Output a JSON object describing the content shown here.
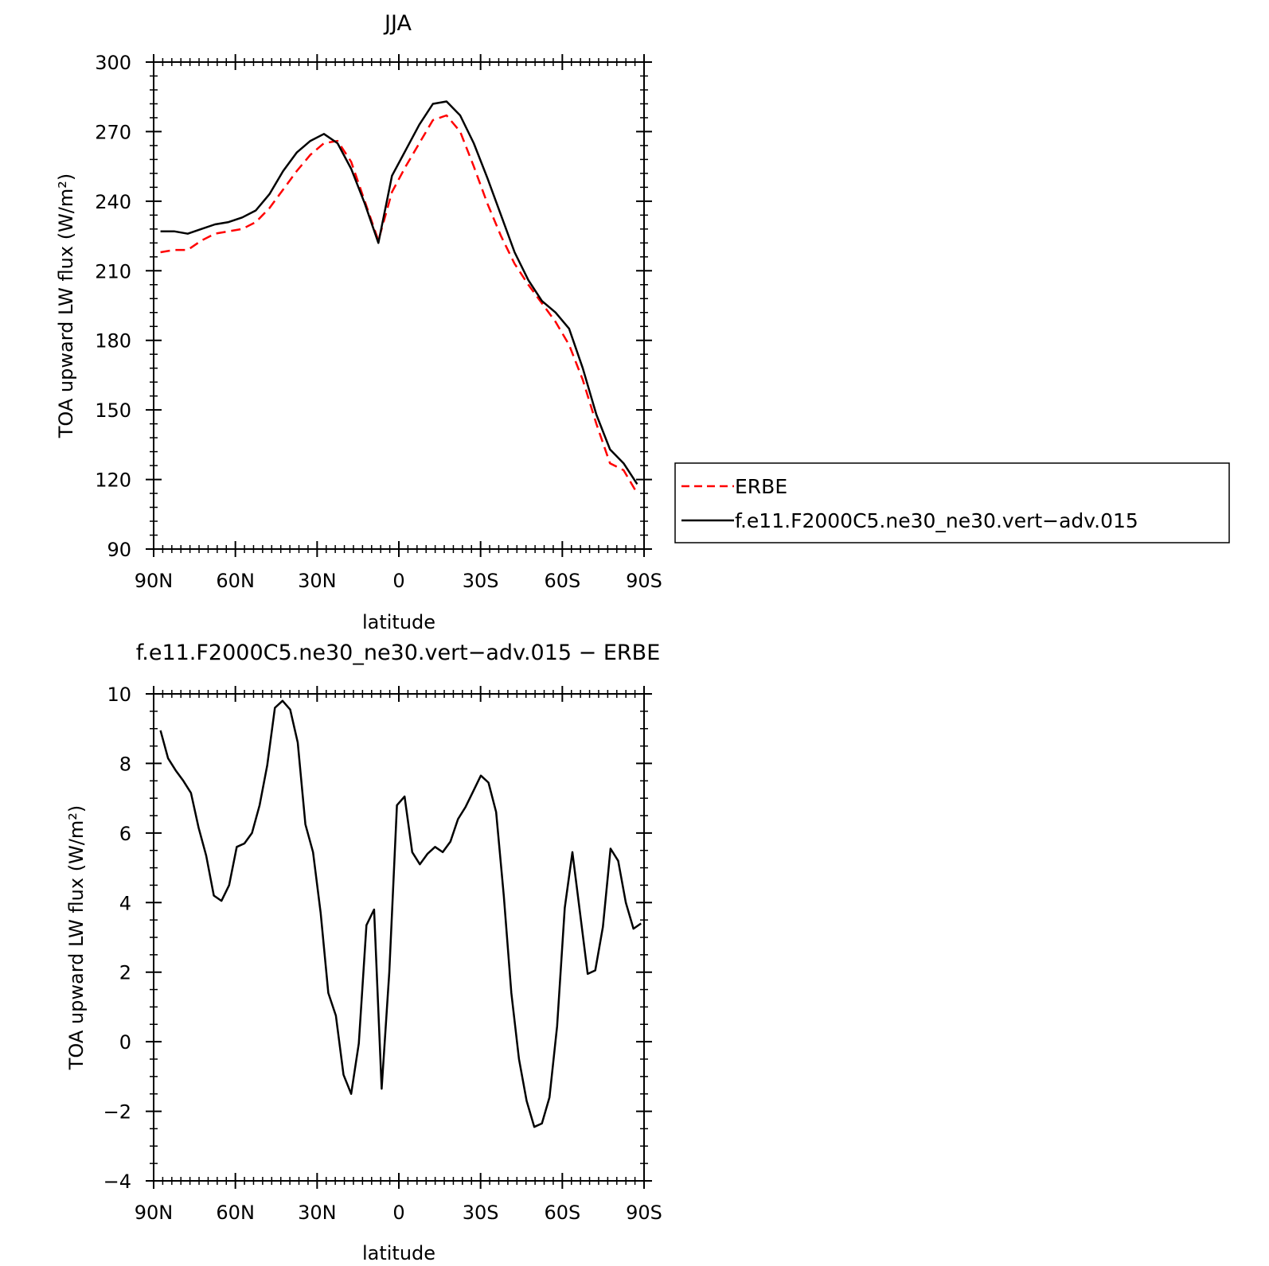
{
  "chart_data": [
    {
      "type": "line",
      "title": "JJA",
      "xlabel": "latitude",
      "ylabel": "TOA upward LW flux (W/m²)",
      "xlim": [
        -90,
        90
      ],
      "ylim": [
        90,
        300
      ],
      "x_ticks": [
        -90,
        -60,
        -30,
        0,
        30,
        60,
        90
      ],
      "x_tick_labels": [
        "90N",
        "60N",
        "30N",
        "0",
        "30S",
        "60S",
        "90S"
      ],
      "y_ticks": [
        90,
        120,
        150,
        180,
        210,
        240,
        270,
        300
      ],
      "y_tick_labels": [
        "90",
        "120",
        "150",
        "180",
        "210",
        "240",
        "270",
        "300"
      ],
      "legend_position": "right",
      "series": [
        {
          "name": "ERBE",
          "color": "#ff0000",
          "dash": "dashed",
          "x": [
            -87.5,
            -82.5,
            -77.5,
            -72.5,
            -67.5,
            -62.5,
            -57.5,
            -52.5,
            -47.5,
            -42.5,
            -37.5,
            -32.5,
            -27.5,
            -22.5,
            -17.5,
            -12.5,
            -7.5,
            -2.5,
            2.5,
            7.5,
            12.5,
            17.5,
            22.5,
            27.5,
            32.5,
            37.5,
            42.5,
            47.5,
            52.5,
            57.5,
            62.5,
            67.5,
            72.5,
            77.5,
            82.5,
            87.5
          ],
          "y": [
            218,
            219,
            219,
            223,
            226,
            227,
            228,
            231,
            237,
            245,
            253,
            260,
            265,
            266,
            257,
            240,
            223,
            244,
            255,
            265,
            275,
            277,
            270,
            255,
            239,
            225,
            213,
            204,
            196,
            188,
            178,
            163,
            144,
            127,
            124,
            114
          ]
        },
        {
          "name": "f.e11.F2000C5.ne30_ne30.vert−adv.015",
          "color": "#000000",
          "dash": "solid",
          "x": [
            -87.5,
            -82.5,
            -77.5,
            -72.5,
            -67.5,
            -62.5,
            -57.5,
            -52.5,
            -47.5,
            -42.5,
            -37.5,
            -32.5,
            -27.5,
            -22.5,
            -17.5,
            -12.5,
            -7.5,
            -2.5,
            2.5,
            7.5,
            12.5,
            17.5,
            22.5,
            27.5,
            32.5,
            37.5,
            42.5,
            47.5,
            52.5,
            57.5,
            62.5,
            67.5,
            72.5,
            77.5,
            82.5,
            87.5
          ],
          "y": [
            227,
            227,
            226,
            228,
            230,
            231,
            233,
            236,
            243,
            253,
            261,
            266,
            269,
            265,
            254,
            239,
            222,
            251,
            262,
            273,
            282,
            283,
            277,
            265,
            250,
            234,
            218,
            206,
            197,
            192,
            185,
            168,
            148,
            133,
            127,
            118
          ]
        }
      ]
    },
    {
      "type": "line",
      "title": "f.e11.F2000C5.ne30_ne30.vert−adv.015 − ERBE",
      "xlabel": "latitude",
      "ylabel": "TOA upward LW flux (W/m²)",
      "xlim": [
        -90,
        90
      ],
      "ylim": [
        -4,
        10
      ],
      "x_ticks": [
        -90,
        -60,
        -30,
        0,
        30,
        60,
        90
      ],
      "x_tick_labels": [
        "90N",
        "60N",
        "30N",
        "0",
        "30S",
        "60S",
        "90S"
      ],
      "y_ticks": [
        -4,
        -2,
        0,
        2,
        4,
        6,
        8,
        10
      ],
      "y_tick_labels": [
        "−4",
        "−2",
        "0",
        "2",
        "4",
        "6",
        "8",
        "10"
      ],
      "series": [
        {
          "color": "#000000",
          "dash": "solid",
          "x": [
            -87.5,
            -84.7,
            -81.9,
            -79.1,
            -76.3,
            -73.5,
            -70.7,
            -67.9,
            -65.1,
            -62.3,
            -59.5,
            -56.7,
            -53.9,
            -51.1,
            -48.3,
            -45.5,
            -42.7,
            -39.9,
            -37.1,
            -34.3,
            -31.5,
            -28.7,
            -25.9,
            -23.1,
            -20.3,
            -17.5,
            -14.7,
            -11.9,
            -9.1,
            -6.3,
            -3.5,
            -0.7,
            2.1,
            4.9,
            7.7,
            10.5,
            13.3,
            16.1,
            18.9,
            21.7,
            24.5,
            27.3,
            30.1,
            32.9,
            35.7,
            38.5,
            41.3,
            44.1,
            46.9,
            49.7,
            52.5,
            55.3,
            58.1,
            60.9,
            63.7,
            66.5,
            69.3,
            72.1,
            74.9,
            77.7,
            80.5,
            83.3,
            86.1,
            88.9
          ],
          "y": [
            8.95,
            8.15,
            7.8,
            7.5,
            7.15,
            6.15,
            5.35,
            4.2,
            4.05,
            4.5,
            5.6,
            5.7,
            6.0,
            6.8,
            7.95,
            9.6,
            9.8,
            9.55,
            8.6,
            6.25,
            5.45,
            3.7,
            1.4,
            0.75,
            -0.95,
            -1.5,
            -0.05,
            3.35,
            3.8,
            -1.35,
            2.0,
            6.8,
            7.05,
            5.45,
            5.1,
            5.4,
            5.6,
            5.45,
            5.75,
            6.4,
            6.75,
            7.2,
            7.65,
            7.45,
            6.6,
            4.2,
            1.4,
            -0.5,
            -1.7,
            -2.45,
            -2.35,
            -1.6,
            0.45,
            3.85,
            5.45,
            3.7,
            1.95,
            2.05,
            3.3,
            5.55,
            5.2,
            4.0,
            3.25,
            3.4
          ]
        }
      ]
    }
  ]
}
